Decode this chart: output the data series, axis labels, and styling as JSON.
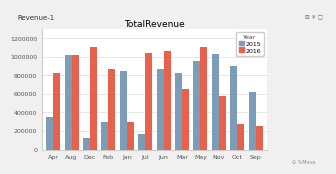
{
  "title": "TotalRevenue",
  "window_title": "Revenue-1",
  "categories": [
    "Apr",
    "Aug",
    "Dec",
    "Feb",
    "Jan",
    "Jul",
    "Jun",
    "Mar",
    "May",
    "Nov",
    "Oct",
    "Sep"
  ],
  "values_2015": [
    350000,
    1020000,
    120000,
    300000,
    850000,
    170000,
    870000,
    820000,
    950000,
    1030000,
    900000,
    620000
  ],
  "values_2016": [
    820000,
    1020000,
    1100000,
    870000,
    300000,
    1040000,
    1060000,
    650000,
    1100000,
    580000,
    280000,
    250000
  ],
  "color_2015": "#7b9db8",
  "color_2016": "#e8614c",
  "legend_title": "Year",
  "legend_labels": [
    "2015",
    "2016"
  ],
  "ylim": [
    0,
    1300000
  ],
  "yticks": [
    0,
    200000,
    400000,
    600000,
    800000,
    1000000,
    1200000
  ],
  "ytick_labels": [
    "0",
    "200000",
    "400000",
    "600000",
    "800000",
    "1000000",
    "1200000"
  ],
  "plot_bg_color": "#ffffff",
  "fig_bg_color": "#f0f0f0",
  "titlebar_bg": "#e8e8e8",
  "bar_width": 0.38,
  "fontsize_title": 6.5,
  "fontsize_ticks": 4.5,
  "fontsize_legend": 4.5
}
